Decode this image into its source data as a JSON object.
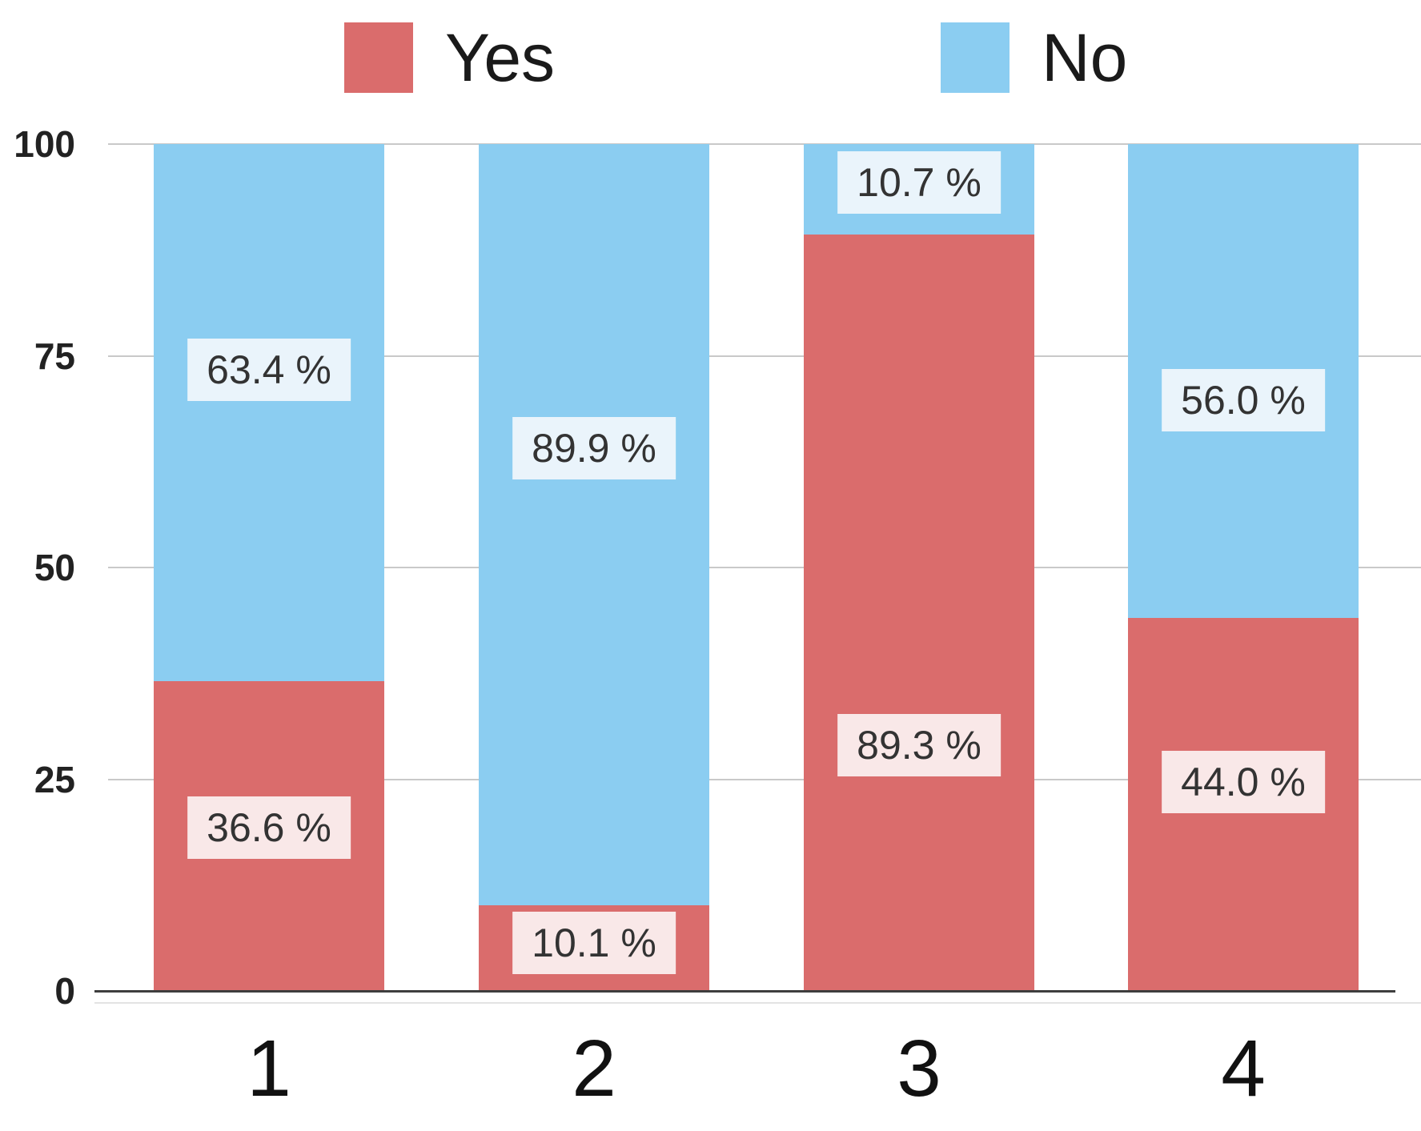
{
  "chart_data": {
    "type": "bar",
    "stacked": true,
    "title": "",
    "categories": [
      "1",
      "2",
      "3",
      "4"
    ],
    "series": [
      {
        "name": "Yes",
        "color": "#DA6C6C",
        "label_bg": "#F9E8E8",
        "values": [
          36.6,
          10.1,
          89.3,
          44.0
        ],
        "value_labels": [
          "36.6 %",
          "10.1 %",
          "89.3 %",
          "44.0 %"
        ],
        "label_pos": [
          19.3,
          5.7,
          29.0,
          24.7
        ]
      },
      {
        "name": "No",
        "color": "#8BCDF1",
        "label_bg": "#EAF4FB",
        "values": [
          63.4,
          89.9,
          10.7,
          56.0
        ],
        "value_labels": [
          "63.4 %",
          "89.9 %",
          "10.7 %",
          "56.0 %"
        ],
        "label_pos": [
          73.3,
          64.1,
          95.5,
          69.8
        ]
      }
    ],
    "y_ticks": [
      0,
      25,
      50,
      75,
      100
    ],
    "ylim": [
      0,
      100
    ],
    "grid": true,
    "legend_position": "top",
    "xlabel": "",
    "ylabel": ""
  },
  "colors": {
    "background": "#FFFFFF",
    "gridline": "#C9C9C9",
    "axis_line": "#3E3E3E",
    "sub_axis_line": "#E3E3E3",
    "tick_text": "#222222",
    "category_text": "#111111",
    "value_label_text": "#333333",
    "legend_text": "#1A1A1A"
  }
}
